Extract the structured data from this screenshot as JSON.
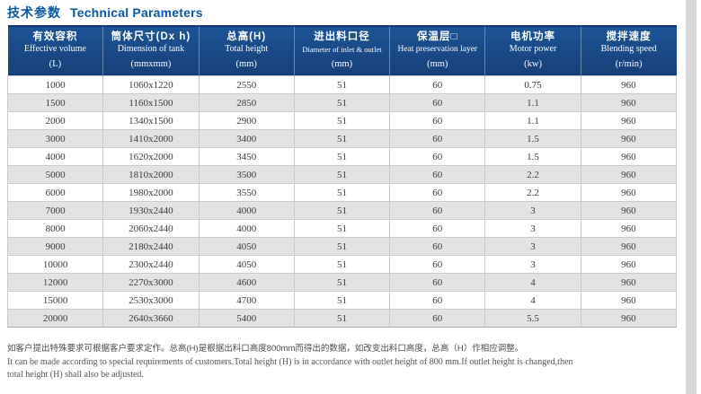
{
  "header": {
    "title_zh": "技术参数",
    "title_en": "Technical Parameters"
  },
  "table": {
    "columns": [
      {
        "zh": "有效容积",
        "en": "Effective volume",
        "unit": "(L)"
      },
      {
        "zh": "筒体尺寸(Dx h)",
        "en": "Dimension of tank",
        "unit": "(mmxmm)"
      },
      {
        "zh": "总高(H)",
        "en": "Total height",
        "unit": "(mm)"
      },
      {
        "zh": "进出料口径",
        "en": "Diameter of inlet & outlet",
        "unit": "(mm)"
      },
      {
        "zh": "保温层□",
        "en": "Heat preservation layer",
        "unit": "(mm)"
      },
      {
        "zh": "电机功率",
        "en": "Motor power",
        "unit": "(kw)"
      },
      {
        "zh": "搅拌速度",
        "en": "Blending speed",
        "unit": "(r/min)"
      }
    ],
    "rows": [
      [
        "1000",
        "1060x1220",
        "2550",
        "51",
        "60",
        "0.75",
        "960"
      ],
      [
        "1500",
        "1160x1500",
        "2850",
        "51",
        "60",
        "1.1",
        "960"
      ],
      [
        "2000",
        "1340x1500",
        "2900",
        "51",
        "60",
        "1.1",
        "960"
      ],
      [
        "3000",
        "1410x2000",
        "3400",
        "51",
        "60",
        "1.5",
        "960"
      ],
      [
        "4000",
        "1620x2000",
        "3450",
        "51",
        "60",
        "1.5",
        "960"
      ],
      [
        "5000",
        "1810x2000",
        "3500",
        "51",
        "60",
        "2.2",
        "960"
      ],
      [
        "6000",
        "1980x2000",
        "3550",
        "51",
        "60",
        "2.2",
        "960"
      ],
      [
        "7000",
        "1930x2440",
        "4000",
        "51",
        "60",
        "3",
        "960"
      ],
      [
        "8000",
        "2060x2440",
        "4000",
        "51",
        "60",
        "3",
        "960"
      ],
      [
        "9000",
        "2180x2440",
        "4050",
        "51",
        "60",
        "3",
        "960"
      ],
      [
        "10000",
        "2300x2440",
        "4050",
        "51",
        "60",
        "3",
        "960"
      ],
      [
        "12000",
        "2270x3000",
        "4600",
        "51",
        "60",
        "4",
        "960"
      ],
      [
        "15000",
        "2530x3000",
        "4700",
        "51",
        "60",
        "4",
        "960"
      ],
      [
        "20000",
        "2640x3660",
        "5400",
        "51",
        "60",
        "5.5",
        "960"
      ]
    ]
  },
  "footnote": {
    "zh": "如客户提出特殊要求可根据客户要求定作。总高(H)是根据出料口高度800mm而得出的数据，如改变出料口高度，总高（H）作相应调整。",
    "en_line1": "It can be made according to special requirements of customers.Total height (H) is in accordance with outlet height of 800 mm.If outlet height is changed,then",
    "en_line2": "total height (H) shall also be adjusted."
  },
  "colors": {
    "title_blue": "#0b58a4",
    "header_bg_top": "#1d5496",
    "header_bg_bottom": "#163f78",
    "header_border": "#11396c",
    "row_alt": "#e3e3e3",
    "grid_line": "#c9c9c9",
    "edge_strip": "#d8d8d8"
  }
}
